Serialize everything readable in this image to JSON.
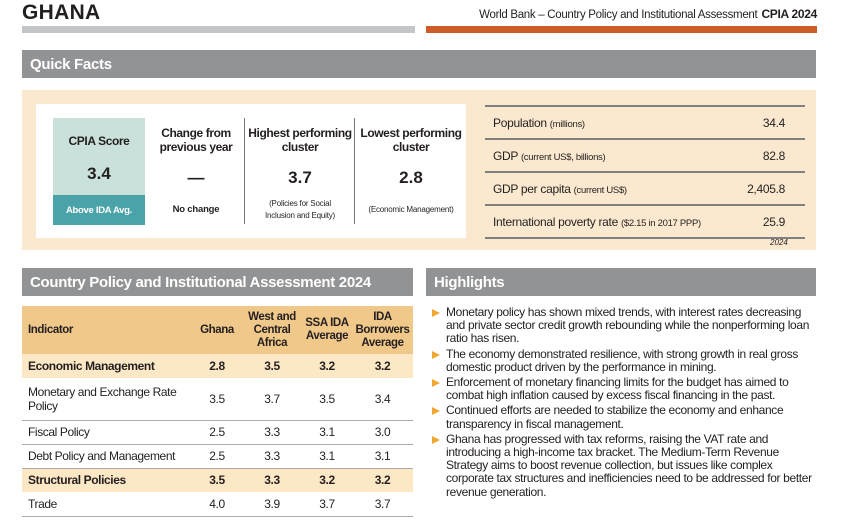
{
  "header": {
    "country": "GHANA",
    "report": "World Bank – Country Policy and Institutional Assessment",
    "report_tag": "CPIA 2024"
  },
  "colors": {
    "accent": "#cc5d28",
    "section_header": "#929395",
    "teal": "#4aa3a8",
    "panel": "#fbe9cf",
    "table_header": "#f0c88a"
  },
  "quick_facts": {
    "title": "Quick Facts",
    "score": {
      "label": "CPIA Score",
      "value": "3.4",
      "badge": "Above IDA Avg."
    },
    "change": {
      "label": "Change from previous year",
      "value": "—",
      "note": "No change"
    },
    "highest": {
      "label": "Highest performing cluster",
      "value": "3.7",
      "note": "(Policies for Social Inclusion and Equity)"
    },
    "lowest": {
      "label": "Lowest performing cluster",
      "value": "2.8",
      "note": "(Economic Management)"
    },
    "facts": [
      {
        "label": "Population",
        "unit": "(millions)",
        "value": "34.4"
      },
      {
        "label": "GDP",
        "unit": "(current US$, billions)",
        "value": "82.8"
      },
      {
        "label": "GDP per capita",
        "unit": "(current US$)",
        "value": "2,405.8"
      },
      {
        "label": "International poverty rate",
        "unit": "($2.15 in 2017 PPP)",
        "value": "25.9"
      }
    ],
    "year": "2024"
  },
  "cpia": {
    "title": "Country Policy and Institutional Assessment 2024",
    "columns": [
      "Indicator",
      "Ghana",
      "West and Central Africa",
      "SSA IDA Average",
      "IDA Borrowers Average"
    ],
    "rows": [
      {
        "cells": [
          "Economic Management",
          "2.8",
          "3.5",
          "3.2",
          "3.2"
        ]
      },
      {
        "cells": [
          "Monetary and Exchange Rate Policy",
          "3.5",
          "3.7",
          "3.5",
          "3.4"
        ]
      },
      {
        "cells": [
          "Fiscal Policy",
          "2.5",
          "3.3",
          "3.1",
          "3.0"
        ]
      },
      {
        "cells": [
          "Debt Policy and Management",
          "2.5",
          "3.3",
          "3.1",
          "3.1"
        ]
      },
      {
        "cells": [
          "Structural Policies",
          "3.5",
          "3.3",
          "3.2",
          "3.2"
        ]
      },
      {
        "cells": [
          "Trade",
          "4.0",
          "3.9",
          "3.7",
          "3.7"
        ]
      }
    ]
  },
  "highlights": {
    "title": "Highlights",
    "items": [
      "Monetary policy has shown mixed trends, with interest rates decreasing and private sector credit growth rebounding while the nonperforming loan ratio has risen.",
      "The economy demonstrated resilience, with strong growth in real gross domestic product driven by the performance in mining.",
      "Enforcement of monetary financing limits for the budget has aimed to combat high inflation caused by excess fiscal financing in the past.",
      "Continued efforts are needed to stabilize the economy and enhance transparency in fiscal management.",
      "Ghana has progressed with tax reforms, raising the VAT rate  and introducing a high-income tax bracket. The Medium-Term Revenue Strategy aims to boost revenue collection, but issues like complex corporate tax structures and inefficiencies need to be addressed for better revenue generation."
    ]
  }
}
